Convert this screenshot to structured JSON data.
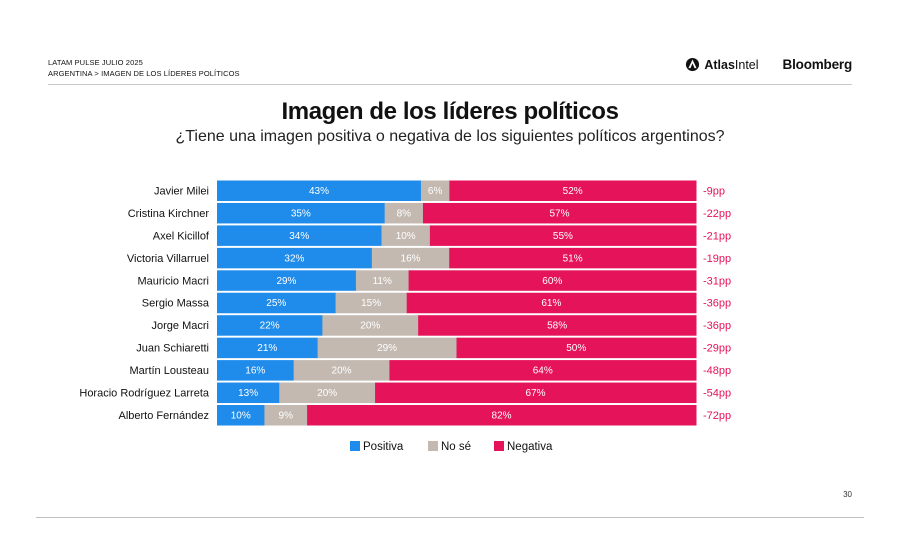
{
  "header": {
    "line1": "LATAM PULSE JULIO 2025",
    "line2": "ARGENTINA > IMAGEN DE LOS LÍDERES POLÍTICOS",
    "atlas_brand_a": "Atlas",
    "atlas_brand_b": "Intel",
    "bloomberg": "Bloomberg"
  },
  "page_number": "30",
  "colors": {
    "positiva": "#1f8bea",
    "nose": "#c3b9b1",
    "negativa": "#e5135a",
    "net": "#e5135a"
  },
  "chart_data": {
    "type": "bar",
    "orientation": "horizontal",
    "stacked": true,
    "title": "Imagen de los líderes políticos",
    "subtitle": "¿Tiene una imagen positiva o negativa de los siguientes políticos argentinos?",
    "categories": [
      "Javier Milei",
      "Cristina Kirchner",
      "Axel Kicillof",
      "Victoria Villarruel",
      "Mauricio Macri",
      "Sergio Massa",
      "Jorge Macri",
      "Juan Schiaretti",
      "Martín Lousteau",
      "Horacio Rodríguez Larreta",
      "Alberto Fernández"
    ],
    "series": [
      {
        "name": "Positiva",
        "values": [
          43,
          35,
          34,
          32,
          29,
          25,
          22,
          21,
          16,
          13,
          10
        ]
      },
      {
        "name": "No sé",
        "values": [
          6,
          8,
          10,
          16,
          11,
          15,
          20,
          29,
          20,
          20,
          9
        ]
      },
      {
        "name": "Negativa",
        "values": [
          52,
          57,
          55,
          51,
          60,
          61,
          58,
          50,
          64,
          67,
          82
        ]
      }
    ],
    "net_labels": [
      "-9pp",
      "-22pp",
      "-21pp",
      "-19pp",
      "-31pp",
      "-36pp",
      "-36pp",
      "-29pp",
      "-48pp",
      "-54pp",
      "-72pp"
    ],
    "legend": [
      "Positiva",
      "No sé",
      "Negativa"
    ],
    "legend_position": "bottom",
    "xlim": [
      0,
      100
    ]
  }
}
